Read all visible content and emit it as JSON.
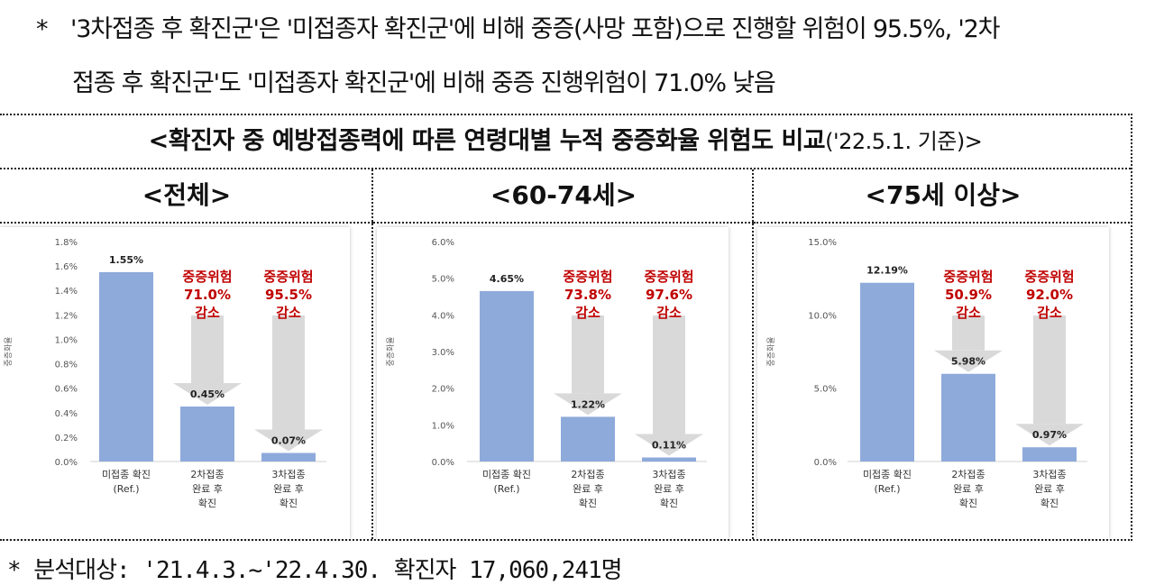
{
  "notes": {
    "line1": "'3차접종 후 확진군'은 '미접종자 확진군'에 비해 중증(사망 포함)으로 진행할 위험이 95.5%, '2차",
    "line2": "접종 후 확진군'도 '미접종자 확진군'에 비해 중증 진행위험이 71.0% 낮음",
    "bullet": "*"
  },
  "table": {
    "title_bold": "<확진자 중 예방접종력에 따른 연령대별 누적 중증화율 위험도 비교",
    "title_light": "('22.5.1. 기준)>",
    "columns": [
      "<전체>",
      "<60-74세>",
      "<75세 이상>"
    ]
  },
  "footnote": "* 분석대상: '21.4.3.~'22.4.30. 확진자 17,060,241명",
  "colors": {
    "bar": "#8eaadb",
    "risk_text": "#c00000",
    "arrow": "#d9d9d9"
  },
  "chart_data": [
    {
      "type": "bar",
      "title": "<전체>",
      "ylabel": "중증화율",
      "ylim": [
        0,
        1.8
      ],
      "yticks": [
        "0.0%",
        "0.2%",
        "0.4%",
        "0.6%",
        "0.8%",
        "1.0%",
        "1.2%",
        "1.4%",
        "1.6%",
        "1.8%"
      ],
      "categories": [
        [
          "미접종 확진",
          "(Ref.)"
        ],
        [
          "2차접종",
          "완료 후",
          "확진"
        ],
        [
          "3차접종",
          "완료 후",
          "확진"
        ]
      ],
      "values": [
        1.55,
        0.45,
        0.07
      ],
      "value_labels": [
        "1.55%",
        "0.45%",
        "0.07%"
      ],
      "annotations": [
        null,
        [
          "중증위험",
          "71.0%",
          "감소"
        ],
        [
          "중증위험",
          "95.5%",
          "감소"
        ]
      ]
    },
    {
      "type": "bar",
      "title": "<60-74세>",
      "ylabel": "중증화율",
      "ylim": [
        0,
        6.0
      ],
      "yticks": [
        "0.0%",
        "1.0%",
        "2.0%",
        "3.0%",
        "4.0%",
        "5.0%",
        "6.0%"
      ],
      "categories": [
        [
          "미접종 확진",
          "(Ref.)"
        ],
        [
          "2차접종",
          "완료 후",
          "확진"
        ],
        [
          "3차접종",
          "완료 후",
          "확진"
        ]
      ],
      "values": [
        4.65,
        1.22,
        0.11
      ],
      "value_labels": [
        "4.65%",
        "1.22%",
        "0.11%"
      ],
      "annotations": [
        null,
        [
          "중증위험",
          "73.8%",
          "감소"
        ],
        [
          "중증위험",
          "97.6%",
          "감소"
        ]
      ]
    },
    {
      "type": "bar",
      "title": "<75세 이상>",
      "ylabel": "중증화율",
      "ylim": [
        0,
        15.0
      ],
      "yticks": [
        "0.0%",
        "5.0%",
        "10.0%",
        "15.0%"
      ],
      "categories": [
        [
          "미접종 확진",
          "(Ref.)"
        ],
        [
          "2차접종",
          "완료 후",
          "확진"
        ],
        [
          "3차접종",
          "완료 후",
          "확진"
        ]
      ],
      "values": [
        12.19,
        5.98,
        0.97
      ],
      "value_labels": [
        "12.19%",
        "5.98%",
        "0.97%"
      ],
      "annotations": [
        null,
        [
          "중증위험",
          "50.9%",
          "감소"
        ],
        [
          "중증위험",
          "92.0%",
          "감소"
        ]
      ]
    }
  ]
}
